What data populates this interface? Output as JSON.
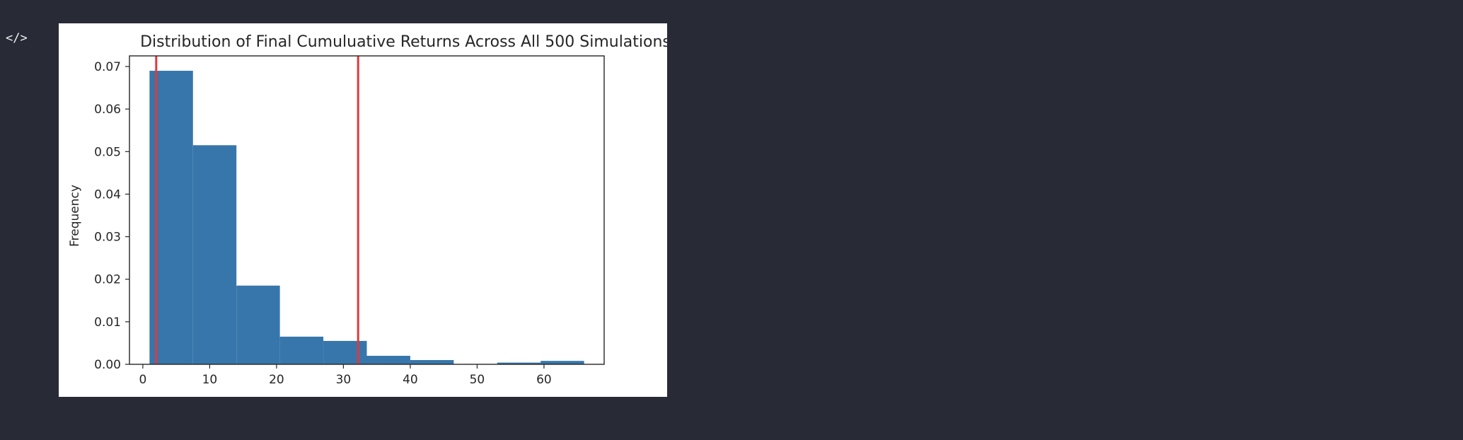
{
  "toolbar": {
    "code_toggle_icon": "code-icon",
    "code_toggle_glyph": "</>"
  },
  "chart_data": {
    "type": "bar",
    "title": "Distribution of Final Cumuluative Returns Across All 500 Simulations",
    "xlabel": "",
    "ylabel": "Frequency",
    "xlim": [
      -2,
      69
    ],
    "ylim": [
      0,
      0.0725
    ],
    "xticks": [
      0,
      10,
      20,
      30,
      40,
      50,
      60
    ],
    "yticks": [
      0.0,
      0.01,
      0.02,
      0.03,
      0.04,
      0.05,
      0.06,
      0.07
    ],
    "ytick_labels": [
      "0.00",
      "0.01",
      "0.02",
      "0.03",
      "0.04",
      "0.05",
      "0.06",
      "0.07"
    ],
    "bins": [
      {
        "x0": 1.0,
        "x1": 7.5,
        "value": 0.069
      },
      {
        "x0": 7.5,
        "x1": 14.0,
        "value": 0.0515
      },
      {
        "x0": 14.0,
        "x1": 20.5,
        "value": 0.0185
      },
      {
        "x0": 20.5,
        "x1": 27.0,
        "value": 0.0065
      },
      {
        "x0": 27.0,
        "x1": 33.5,
        "value": 0.0055
      },
      {
        "x0": 33.5,
        "x1": 40.0,
        "value": 0.002
      },
      {
        "x0": 40.0,
        "x1": 46.5,
        "value": 0.001
      },
      {
        "x0": 46.5,
        "x1": 53.0,
        "value": 0.0
      },
      {
        "x0": 53.0,
        "x1": 59.5,
        "value": 0.0004
      },
      {
        "x0": 59.5,
        "x1": 66.0,
        "value": 0.0008
      }
    ],
    "vlines": [
      2.0,
      32.2
    ],
    "bar_color": "#3776ab",
    "line_color": "#e03a3a",
    "grid": false,
    "legend": "none"
  }
}
